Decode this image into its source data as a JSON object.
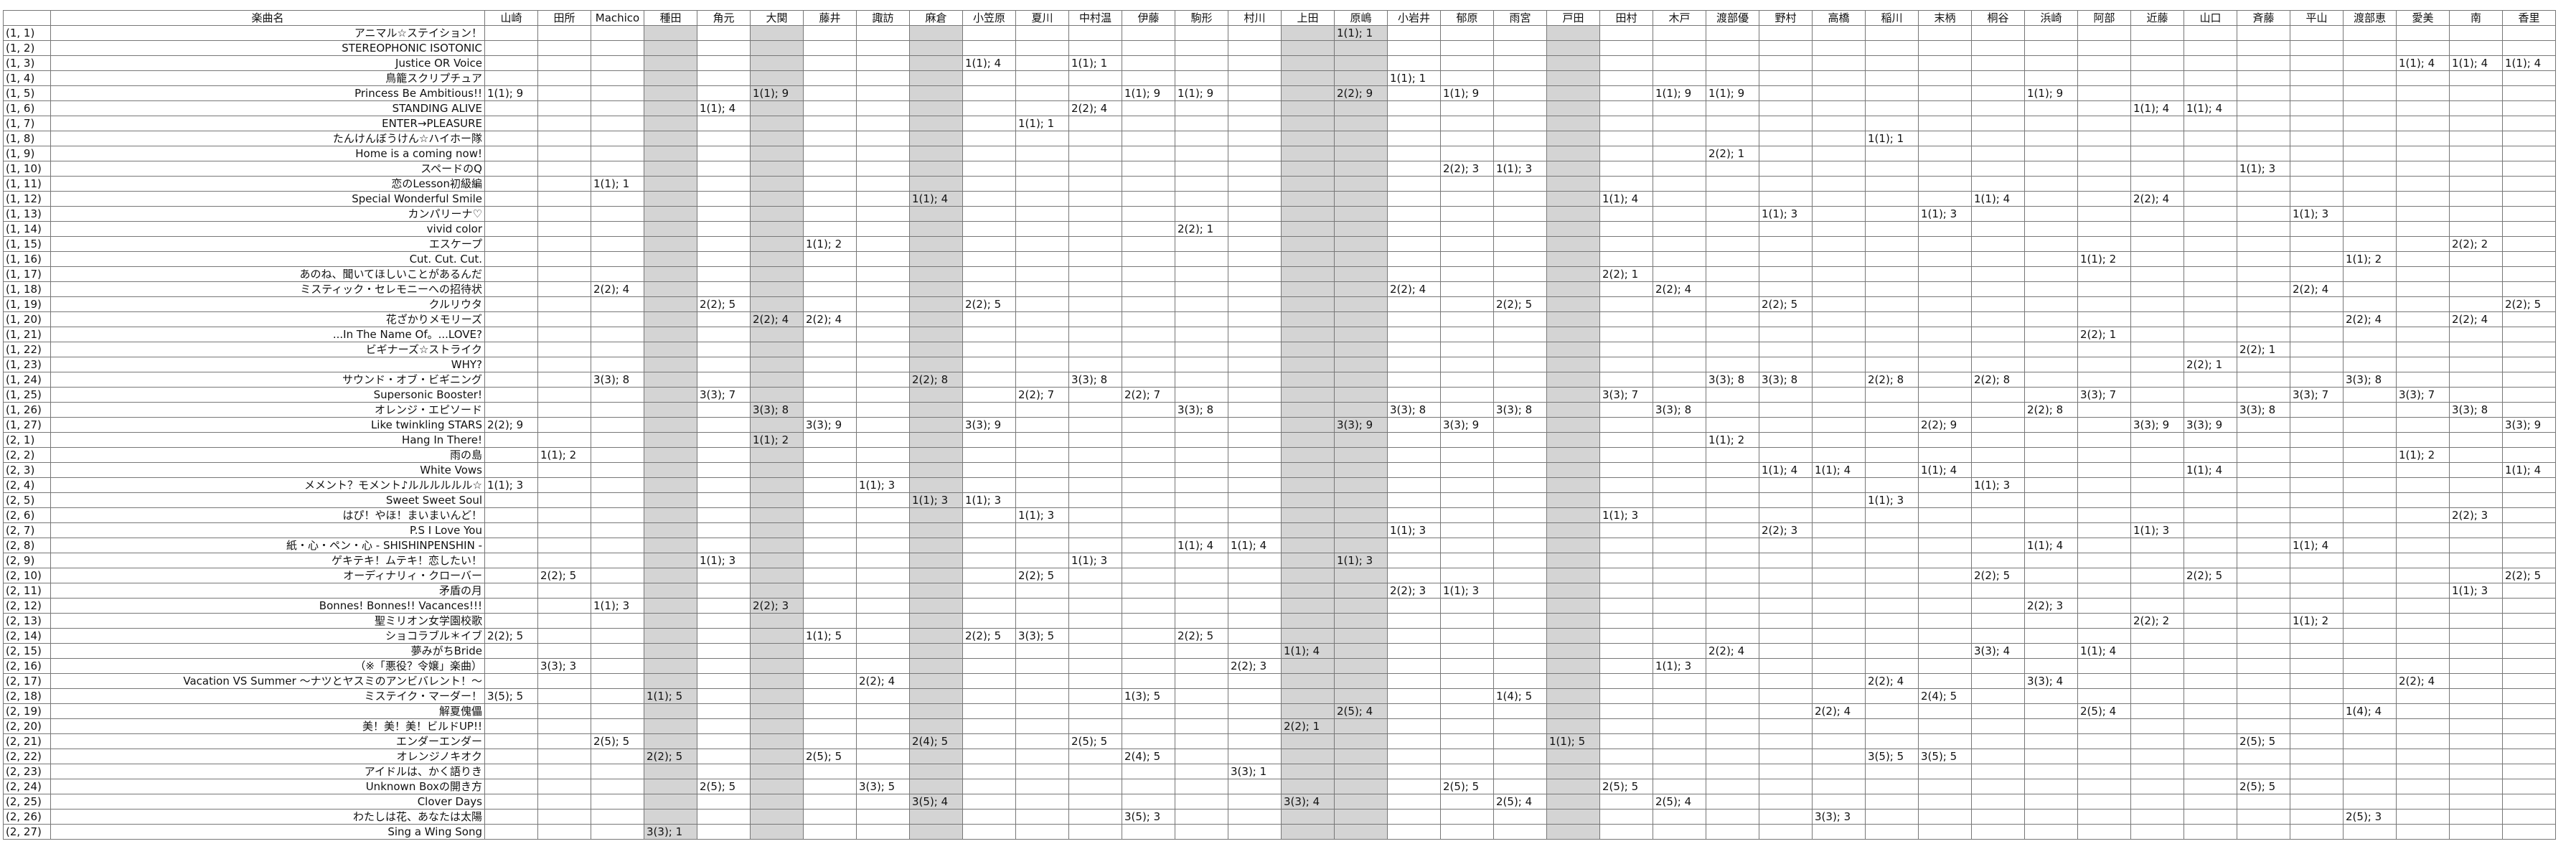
{
  "table": {
    "columns": [
      "",
      "楽曲名",
      "山崎",
      "田所",
      "Machico",
      "種田",
      "角元",
      "大関",
      "藤井",
      "諏訪",
      "麻倉",
      "小笠原",
      "夏川",
      "中村温",
      "伊藤",
      "駒形",
      "村川",
      "上田",
      "原嶋",
      "小岩井",
      "郁原",
      "雨宮",
      "戸田",
      "田村",
      "木戸",
      "渡部優",
      "野村",
      "高橋",
      "稲川",
      "末柄",
      "桐谷",
      "浜崎",
      "阿部",
      "近藤",
      "山口",
      "斉藤",
      "平山",
      "渡部恵",
      "愛美",
      "南",
      "香里"
    ],
    "gray_columns": [
      3,
      5,
      8,
      15,
      16,
      20
    ],
    "rows": [
      {
        "id": "(1, 1)",
        "title": "アニマル☆ステイション！",
        "cells": {
          "16": "1(1); 1"
        }
      },
      {
        "id": "(1, 2)",
        "title": "STEREOPHONIC ISOTONIC",
        "cells": {}
      },
      {
        "id": "(1, 3)",
        "title": "Justice OR Voice",
        "cells": {
          "9": "1(1); 4",
          "11": "1(1); 1",
          "36": "1(1); 4",
          "37": "1(1); 4",
          "38": "1(1); 4"
        }
      },
      {
        "id": "(1, 4)",
        "title": "鳥籠スクリプチュア",
        "cells": {
          "17": "1(1); 1"
        }
      },
      {
        "id": "(1, 5)",
        "title": "Princess Be Ambitious!!",
        "cells": {
          "0": "1(1); 9",
          "5": "1(1); 9",
          "12": "1(1); 9",
          "13": "1(1); 9",
          "16": "2(2); 9",
          "18": "1(1); 9",
          "22": "1(1); 9",
          "23": "1(1); 9",
          "29": "1(1); 9"
        }
      },
      {
        "id": "(1, 6)",
        "title": "STANDING ALIVE",
        "cells": {
          "4": "1(1); 4",
          "11": "2(2); 4",
          "31": "1(1); 4",
          "32": "1(1); 4"
        }
      },
      {
        "id": "(1, 7)",
        "title": "ENTER→PLEASURE",
        "cells": {
          "10": "1(1); 1"
        }
      },
      {
        "id": "(1, 8)",
        "title": "たんけんぼうけん☆ハイホー隊",
        "cells": {
          "26": "1(1); 1"
        }
      },
      {
        "id": "(1, 9)",
        "title": "Home is a coming now!",
        "cells": {
          "23": "2(2); 1"
        }
      },
      {
        "id": "(1, 10)",
        "title": "スペードのQ",
        "cells": {
          "18": "2(2); 3",
          "19": "1(1); 3",
          "33": "1(1); 3"
        }
      },
      {
        "id": "(1, 11)",
        "title": "恋のLesson初級編",
        "cells": {
          "2": "1(1); 1"
        }
      },
      {
        "id": "(1, 12)",
        "title": "Special Wonderful Smile",
        "cells": {
          "8": "1(1); 4",
          "21": "1(1); 4",
          "28": "1(1); 4",
          "31": "2(2); 4"
        }
      },
      {
        "id": "(1, 13)",
        "title": "カンパリーナ♡",
        "cells": {
          "24": "1(1); 3",
          "27": "1(1); 3",
          "34": "1(1); 3"
        }
      },
      {
        "id": "(1, 14)",
        "title": "vivid color",
        "cells": {
          "13": "2(2); 1"
        }
      },
      {
        "id": "(1, 15)",
        "title": "エスケープ",
        "cells": {
          "6": "1(1); 2",
          "37": "2(2); 2"
        }
      },
      {
        "id": "(1, 16)",
        "title": "Cut. Cut. Cut.",
        "cells": {
          "30": "1(1); 2",
          "35": "1(1); 2"
        }
      },
      {
        "id": "(1, 17)",
        "title": "あのね、聞いてほしいことがあるんだ",
        "cells": {
          "21": "2(2); 1"
        }
      },
      {
        "id": "(1, 18)",
        "title": "ミスティック・セレモニーへの招待状",
        "cells": {
          "2": "2(2); 4",
          "17": "2(2); 4",
          "22": "2(2); 4",
          "34": "2(2); 4"
        }
      },
      {
        "id": "(1, 19)",
        "title": "クルリウタ",
        "cells": {
          "4": "2(2); 5",
          "9": "2(2); 5",
          "19": "2(2); 5",
          "24": "2(2); 5",
          "38": "2(2); 5"
        }
      },
      {
        "id": "(1, 20)",
        "title": "花ざかりメモリーズ",
        "cells": {
          "5": "2(2); 4",
          "6": "2(2); 4",
          "35": "2(2); 4",
          "37": "2(2); 4"
        }
      },
      {
        "id": "(1, 21)",
        "title": "...In The Name Of。...LOVE?",
        "cells": {
          "30": "2(2); 1"
        }
      },
      {
        "id": "(1, 22)",
        "title": "ビギナーズ☆ストライク",
        "cells": {
          "33": "2(2); 1"
        }
      },
      {
        "id": "(1, 23)",
        "title": "WHY?",
        "cells": {
          "32": "2(2); 1"
        }
      },
      {
        "id": "(1, 24)",
        "title": "サウンド・オブ・ビギニング",
        "cells": {
          "2": "3(3); 8",
          "8": "2(2); 8",
          "11": "3(3); 8",
          "23": "3(3); 8",
          "24": "3(3); 8",
          "26": "2(2); 8",
          "28": "2(2); 8",
          "35": "3(3); 8"
        }
      },
      {
        "id": "(1, 25)",
        "title": "Supersonic Booster!",
        "cells": {
          "4": "3(3); 7",
          "10": "2(2); 7",
          "12": "2(2); 7",
          "21": "3(3); 7",
          "30": "3(3); 7",
          "34": "3(3); 7",
          "36": "3(3); 7"
        }
      },
      {
        "id": "(1, 26)",
        "title": "オレンジ・エピソード",
        "cells": {
          "5": "3(3); 8",
          "13": "3(3); 8",
          "17": "3(3); 8",
          "19": "3(3); 8",
          "22": "3(3); 8",
          "29": "2(2); 8",
          "33": "3(3); 8",
          "37": "3(3); 8"
        }
      },
      {
        "id": "(1, 27)",
        "title": "Like twinkling STARS",
        "cells": {
          "0": "2(2); 9",
          "6": "3(3); 9",
          "9": "3(3); 9",
          "16": "3(3); 9",
          "18": "3(3); 9",
          "27": "2(2); 9",
          "31": "3(3); 9",
          "32": "3(3); 9",
          "38": "3(3); 9"
        }
      },
      {
        "id": "(2, 1)",
        "title": "Hang In There!",
        "cells": {
          "5": "1(1); 2",
          "23": "1(1); 2"
        }
      },
      {
        "id": "(2, 2)",
        "title": "雨の島",
        "cells": {
          "1": "1(1); 2",
          "36": "1(1); 2"
        }
      },
      {
        "id": "(2, 3)",
        "title": "White Vows",
        "cells": {
          "24": "1(1); 4",
          "25": "1(1); 4",
          "27": "1(1); 4",
          "32": "1(1); 4",
          "38": "1(1); 4"
        }
      },
      {
        "id": "(2, 4)",
        "title": "メメント？モメント♪ルルルルルル☆",
        "cells": {
          "0": "1(1); 3",
          "7": "1(1); 3",
          "28": "1(1); 3"
        }
      },
      {
        "id": "(2, 5)",
        "title": "Sweet Sweet Soul",
        "cells": {
          "8": "1(1); 3",
          "9": "1(1); 3",
          "26": "1(1); 3"
        }
      },
      {
        "id": "(2, 6)",
        "title": "はぴ！やほ！まいまいんど！",
        "cells": {
          "10": "1(1); 3",
          "21": "1(1); 3",
          "37": "2(2); 3"
        }
      },
      {
        "id": "(2, 7)",
        "title": "P.S I Love You",
        "cells": {
          "17": "1(1); 3",
          "24": "2(2); 3",
          "31": "1(1); 3"
        }
      },
      {
        "id": "(2, 8)",
        "title": "紙・心・ペン・心 - SHISHINPENSHIN -",
        "cells": {
          "13": "1(1); 4",
          "14": "1(1); 4",
          "29": "1(1); 4",
          "34": "1(1); 4"
        }
      },
      {
        "id": "(2, 9)",
        "title": "ゲキテキ！ムテキ！恋したい！",
        "cells": {
          "4": "1(1); 3",
          "11": "1(1); 3",
          "16": "1(1); 3"
        }
      },
      {
        "id": "(2, 10)",
        "title": "オーディナリィ・クローバー",
        "cells": {
          "1": "2(2); 5",
          "10": "2(2); 5",
          "28": "2(2); 5",
          "32": "2(2); 5",
          "38": "2(2); 5"
        }
      },
      {
        "id": "(2, 11)",
        "title": "矛盾の月",
        "cells": {
          "17": "2(2); 3",
          "18": "1(1); 3",
          "37": "1(1); 3"
        }
      },
      {
        "id": "(2, 12)",
        "title": "Bonnes! Bonnes!! Vacances!!!",
        "cells": {
          "2": "1(1); 3",
          "5": "2(2); 3",
          "29": "2(2); 3"
        }
      },
      {
        "id": "(2, 13)",
        "title": "聖ミリオン女学園校歌",
        "cells": {
          "31": "2(2); 2",
          "34": "1(1); 2"
        }
      },
      {
        "id": "(2, 14)",
        "title": "ショコラブル＊イブ",
        "cells": {
          "0": "2(2); 5",
          "6": "1(1); 5",
          "9": "2(2); 5",
          "10": "3(3); 5",
          "13": "2(2); 5"
        }
      },
      {
        "id": "(2, 15)",
        "title": "夢みがちBride",
        "cells": {
          "15": "1(1); 4",
          "23": "2(2); 4",
          "28": "3(3); 4",
          "30": "1(1); 4"
        }
      },
      {
        "id": "(2, 16)",
        "title": "（※「悪役？令嬢」楽曲）",
        "cells": {
          "1": "3(3); 3",
          "14": "2(2); 3",
          "22": "1(1); 3"
        }
      },
      {
        "id": "(2, 17)",
        "title": "Vacation VS Summer ～ナツとヤスミのアンビバレント！～",
        "cells": {
          "7": "2(2); 4",
          "26": "2(2); 4",
          "29": "3(3); 4",
          "36": "2(2); 4"
        }
      },
      {
        "id": "(2, 18)",
        "title": "ミステイク・マーダー！",
        "cells": {
          "0": "3(5); 5",
          "3": "1(1); 5",
          "12": "1(3); 5",
          "19": "1(4); 5",
          "27": "2(4); 5"
        }
      },
      {
        "id": "(2, 19)",
        "title": "解夏傀儡",
        "cells": {
          "16": "2(5); 4",
          "25": "2(2); 4",
          "30": "2(5); 4",
          "35": "1(4); 4"
        }
      },
      {
        "id": "(2, 20)",
        "title": "美！美！美！ビルドUP!!",
        "cells": {
          "15": "2(2); 1"
        }
      },
      {
        "id": "(2, 21)",
        "title": "エンダーエンダー",
        "cells": {
          "2": "2(5); 5",
          "8": "2(4); 5",
          "11": "2(5); 5",
          "20": "1(1); 5",
          "33": "2(5); 5"
        }
      },
      {
        "id": "(2, 22)",
        "title": "オレンジノキオク",
        "cells": {
          "3": "2(2); 5",
          "6": "2(5); 5",
          "12": "2(4); 5",
          "26": "3(5); 5",
          "27": "3(5); 5"
        }
      },
      {
        "id": "(2, 23)",
        "title": "アイドルは、かく語りき",
        "cells": {
          "14": "3(3); 1"
        }
      },
      {
        "id": "(2, 24)",
        "title": "Unknown Boxの開き方",
        "cells": {
          "4": "2(5); 5",
          "7": "3(3); 5",
          "18": "2(5); 5",
          "21": "2(5); 5",
          "33": "2(5); 5"
        }
      },
      {
        "id": "(2, 25)",
        "title": "Clover Days",
        "cells": {
          "8": "3(5); 4",
          "15": "3(3); 4",
          "19": "2(5); 4",
          "22": "2(5); 4"
        }
      },
      {
        "id": "(2, 26)",
        "title": "わたしは花、あなたは太陽",
        "cells": {
          "12": "3(5); 3",
          "25": "3(3); 3",
          "35": "2(5); 3"
        }
      },
      {
        "id": "(2, 27)",
        "title": "Sing a Wing Song",
        "cells": {
          "3": "3(3); 1"
        }
      }
    ]
  }
}
